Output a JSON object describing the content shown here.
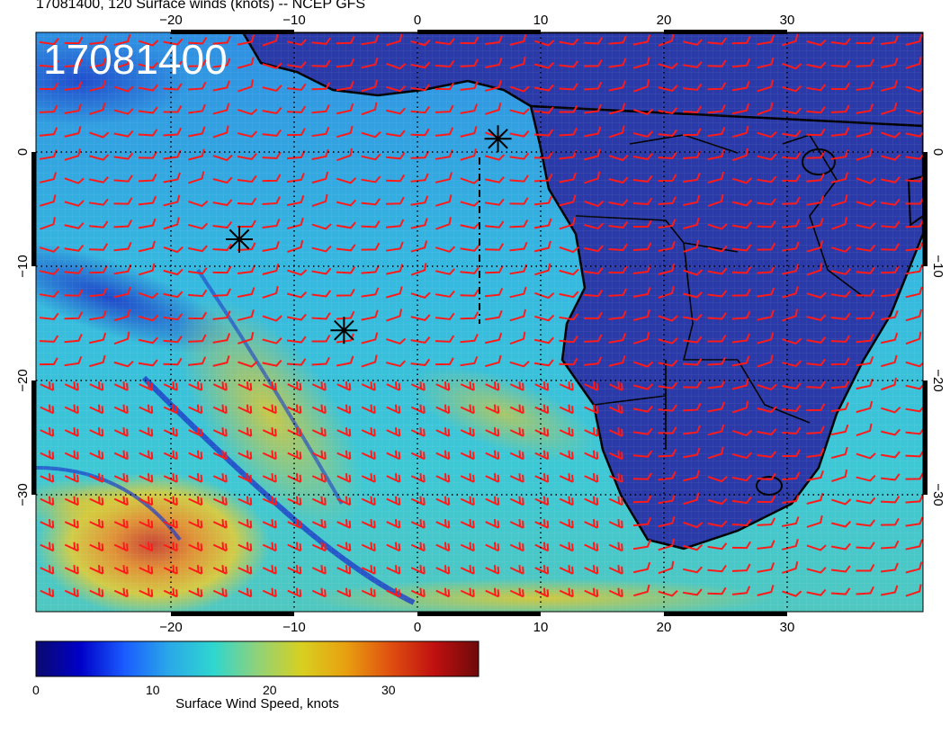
{
  "title": "17081400, 120 Surface winds (knots) -- NCEP GFS",
  "stamp": "17081400",
  "lon_ticks": [
    "−20",
    "−10",
    "0",
    "10",
    "20",
    "30"
  ],
  "lat_ticks": [
    "0",
    "−10",
    "−20",
    "−30"
  ],
  "colorbar": {
    "label": "Surface Wind Speed, knots",
    "ticks": [
      "0",
      "10",
      "20",
      "30"
    ],
    "range": [
      0,
      38
    ],
    "colors": [
      "#0a0a6e",
      "#0000c8",
      "#1a5cff",
      "#2aa8e8",
      "#2ed6d0",
      "#8fd27a",
      "#d8d020",
      "#e8a010",
      "#e05010",
      "#c01010",
      "#6e0a0a"
    ]
  },
  "extent": {
    "lon": [
      -31,
      41
    ],
    "lat": [
      -40,
      9
    ]
  },
  "storm_markers": [
    {
      "lon": -14.5,
      "lat": -8.5
    },
    {
      "lon": -6,
      "lat": -16.2
    },
    {
      "lon": 6.5,
      "lat": 0
    }
  ],
  "barb_color": "#ff1a1a"
}
